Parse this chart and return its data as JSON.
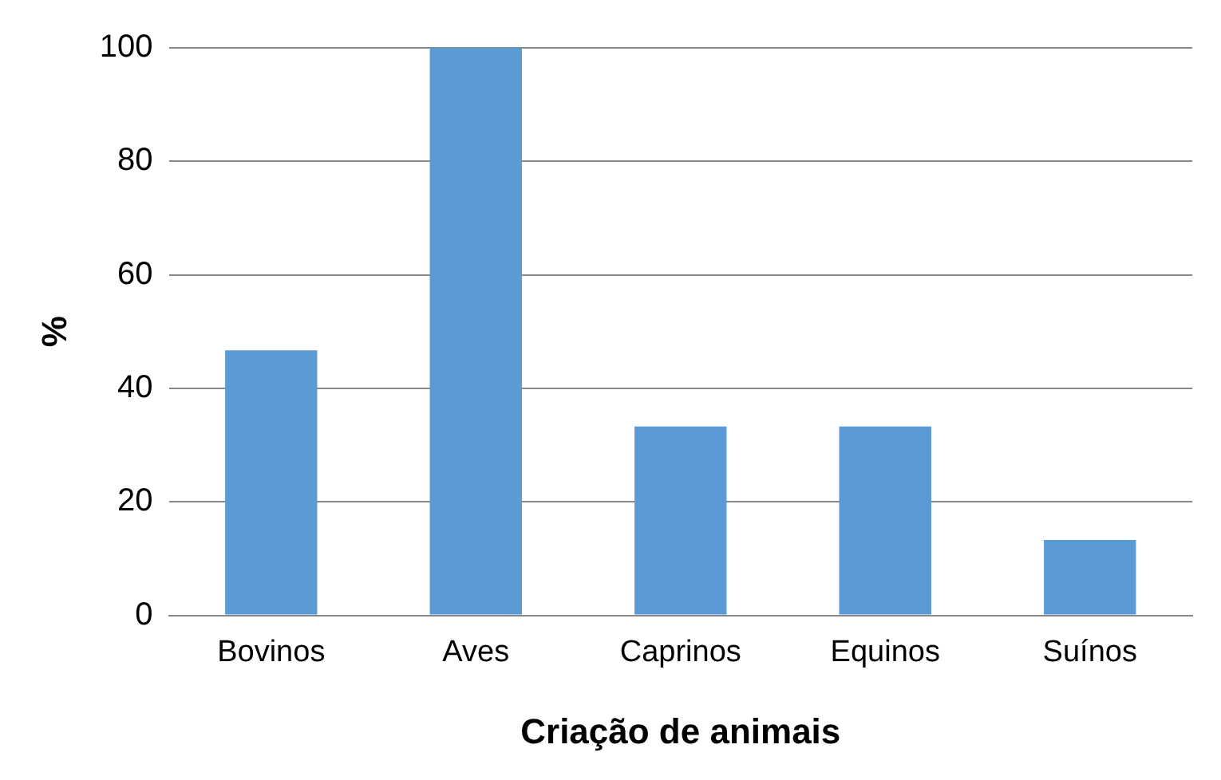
{
  "chart_data": {
    "type": "bar",
    "xlabel": "Criação de animais",
    "ylabel": "%",
    "categories": [
      "Bovinos",
      "Aves",
      "Caprinos",
      "Equinos",
      "Suínos"
    ],
    "values": [
      46.7,
      100,
      33.3,
      33.3,
      13.3
    ],
    "color": "#5b9bd5",
    "ylim": [
      0,
      100
    ],
    "yticks": [
      0,
      20,
      40,
      60,
      80,
      100
    ],
    "grid": "y",
    "legend": false
  }
}
